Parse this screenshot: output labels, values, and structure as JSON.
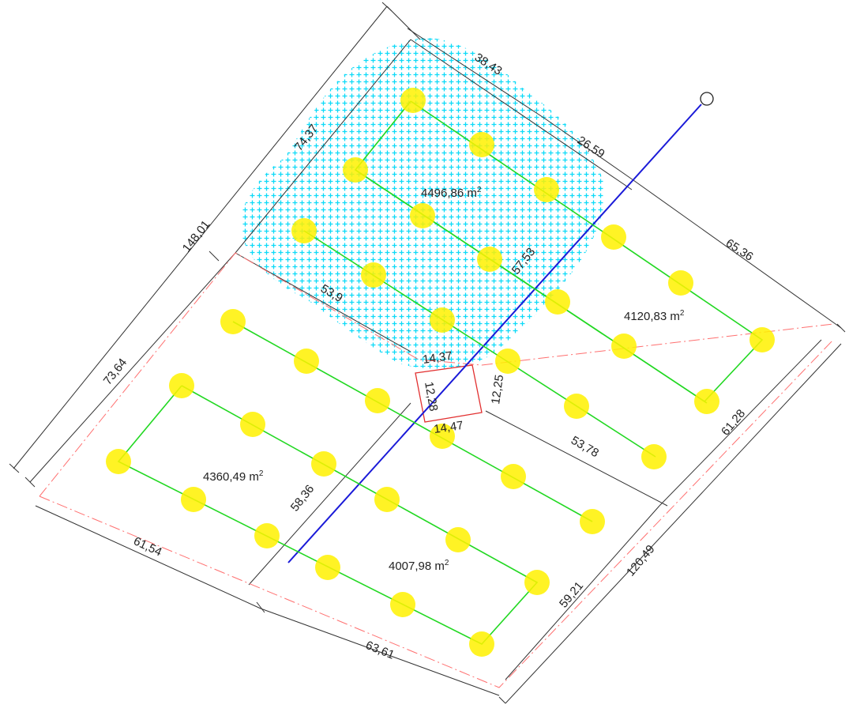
{
  "colors": {
    "hatch": "#00e0ff",
    "node_fill": "#fff200",
    "green_line": "#22d822",
    "blue_line": "#1a1ad8",
    "boundary": "#ff6666",
    "dim_line": "#333333",
    "text": "#222222"
  },
  "dimensions": [
    {
      "id": "d-38-43",
      "text": "38,43"
    },
    {
      "id": "d-26-59",
      "text": "26,59"
    },
    {
      "id": "d-74-37",
      "text": "74,37"
    },
    {
      "id": "d-148-01",
      "text": "148,01"
    },
    {
      "id": "d-65-36",
      "text": "65,36"
    },
    {
      "id": "d-57-53",
      "text": "57,53"
    },
    {
      "id": "d-53-9",
      "text": "53,9"
    },
    {
      "id": "d-73-64",
      "text": "73,64"
    },
    {
      "id": "d-14-37",
      "text": "14,37"
    },
    {
      "id": "d-12-28",
      "text": "12,28"
    },
    {
      "id": "d-12-25",
      "text": "12,25"
    },
    {
      "id": "d-14-47",
      "text": "14,47"
    },
    {
      "id": "d-53-78",
      "text": "53,78"
    },
    {
      "id": "d-61-28",
      "text": "61,28"
    },
    {
      "id": "d-58-36",
      "text": "58,36"
    },
    {
      "id": "d-61-54",
      "text": "61,54"
    },
    {
      "id": "d-59-21",
      "text": "59,21"
    },
    {
      "id": "d-120-49",
      "text": "120,49"
    },
    {
      "id": "d-63-61",
      "text": "63,61"
    }
  ],
  "areas": [
    {
      "id": "a-top",
      "value": "4496,86 m",
      "sup": "2"
    },
    {
      "id": "a-right",
      "value": "4120,83 m",
      "sup": "2"
    },
    {
      "id": "a-left",
      "value": "4360,49 m",
      "sup": "2"
    },
    {
      "id": "a-bottom",
      "value": "4007,98 m",
      "sup": "2"
    }
  ]
}
